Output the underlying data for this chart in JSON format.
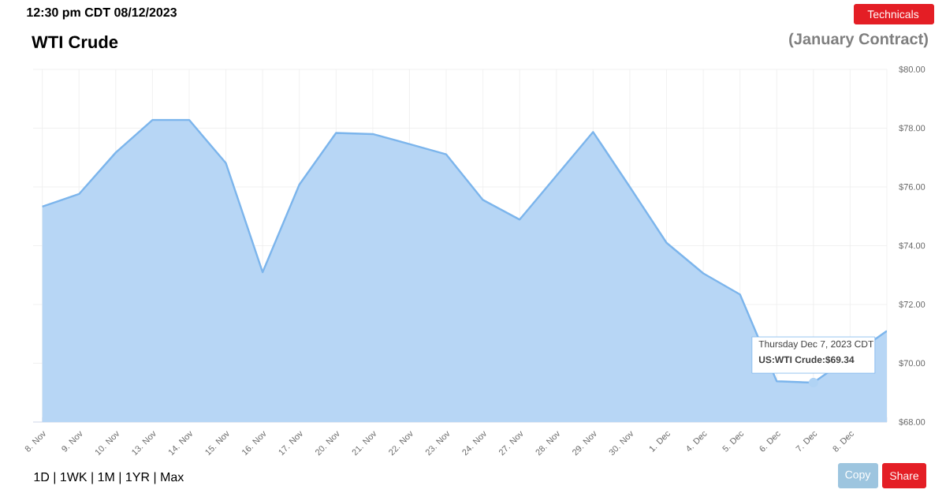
{
  "chart_data": {
    "type": "area",
    "title": "WTI Crude",
    "subtitle": "(January Contract)",
    "categories": [
      "8. Nov",
      "9. Nov",
      "10. Nov",
      "13. Nov",
      "14. Nov",
      "15. Nov",
      "16. Nov",
      "17. Nov",
      "20. Nov",
      "21. Nov",
      "22. Nov",
      "23. Nov",
      "24. Nov",
      "27. Nov",
      "28. Nov",
      "29. Nov",
      "30. Nov",
      "1. Dec",
      "4. Dec",
      "5. Dec",
      "6. Dec",
      "7. Dec",
      "8. Dec",
      null
    ],
    "series": [
      {
        "color": "#7cb5ec",
        "values": [
          75.33,
          75.76,
          77.17,
          78.28,
          78.28,
          76.81,
          73.1,
          76.08,
          77.84,
          77.8,
          77.46,
          77.11,
          75.56,
          74.89,
          76.38,
          77.87,
          76.0,
          74.1,
          73.06,
          72.34,
          69.39,
          69.34,
          null,
          71.1
        ]
      }
    ],
    "ylim": [
      68,
      80
    ],
    "yticks": [
      {
        "value": 68,
        "label": "$68.00"
      },
      {
        "value": 70,
        "label": "$70.00"
      },
      {
        "value": 72,
        "label": "$72.00"
      },
      {
        "value": 74,
        "label": "$74.00"
      },
      {
        "value": 76,
        "label": "$76.00"
      },
      {
        "value": 78,
        "label": "$78.00"
      },
      {
        "value": 80,
        "label": "$80.00"
      }
    ],
    "grid": true,
    "annotations": [
      "12:30 pm CDT 08/12/2023",
      "Technicals",
      "1D | 1WK | 1M | 1YR | Max",
      "Copy",
      "Share",
      "Thursday Dec 7, 2023 CDT",
      {
        "text": "US:WTI Crude:$69.34",
        "x": "7. Dec",
        "y": 69.34
      }
    ]
  }
}
